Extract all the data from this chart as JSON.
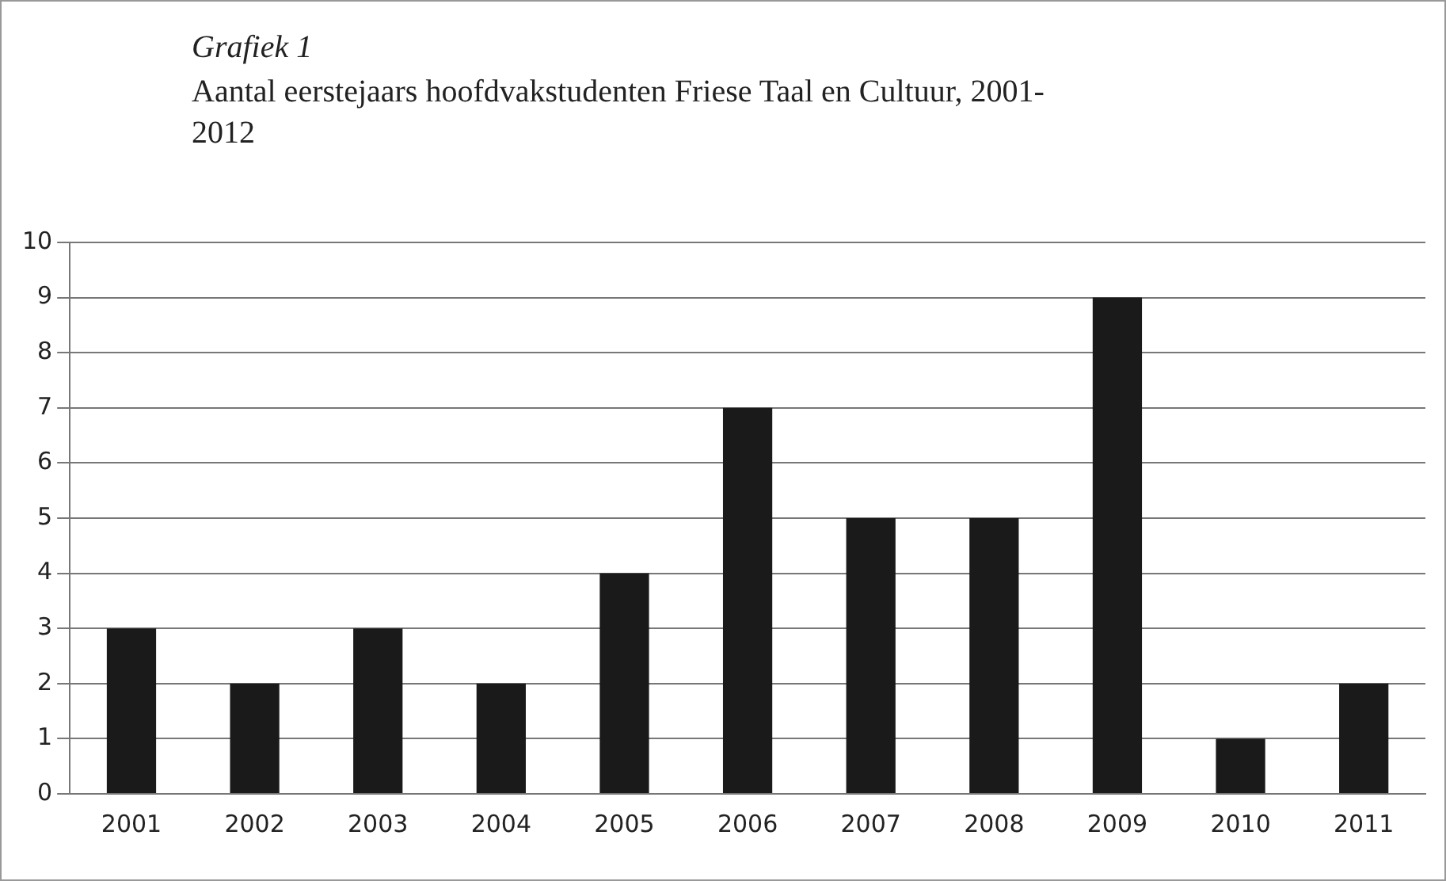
{
  "chart_data": {
    "type": "bar",
    "title": "Grafiek 1",
    "subtitle": "Aantal eerstejaars hoofdvakstudenten Friese Taal en Cultuur, 2001-2012",
    "categories": [
      "2001",
      "2002",
      "2003",
      "2004",
      "2005",
      "2006",
      "2007",
      "2008",
      "2009",
      "2010",
      "2011"
    ],
    "values": [
      3,
      2,
      3,
      2,
      4,
      7,
      5,
      5,
      9,
      1,
      2
    ],
    "color": "#1a1a1a",
    "ylim": [
      0,
      10
    ],
    "yticks": [
      0,
      1,
      2,
      3,
      4,
      5,
      6,
      7,
      8,
      9,
      10
    ],
    "grid": "y",
    "legend": false
  }
}
